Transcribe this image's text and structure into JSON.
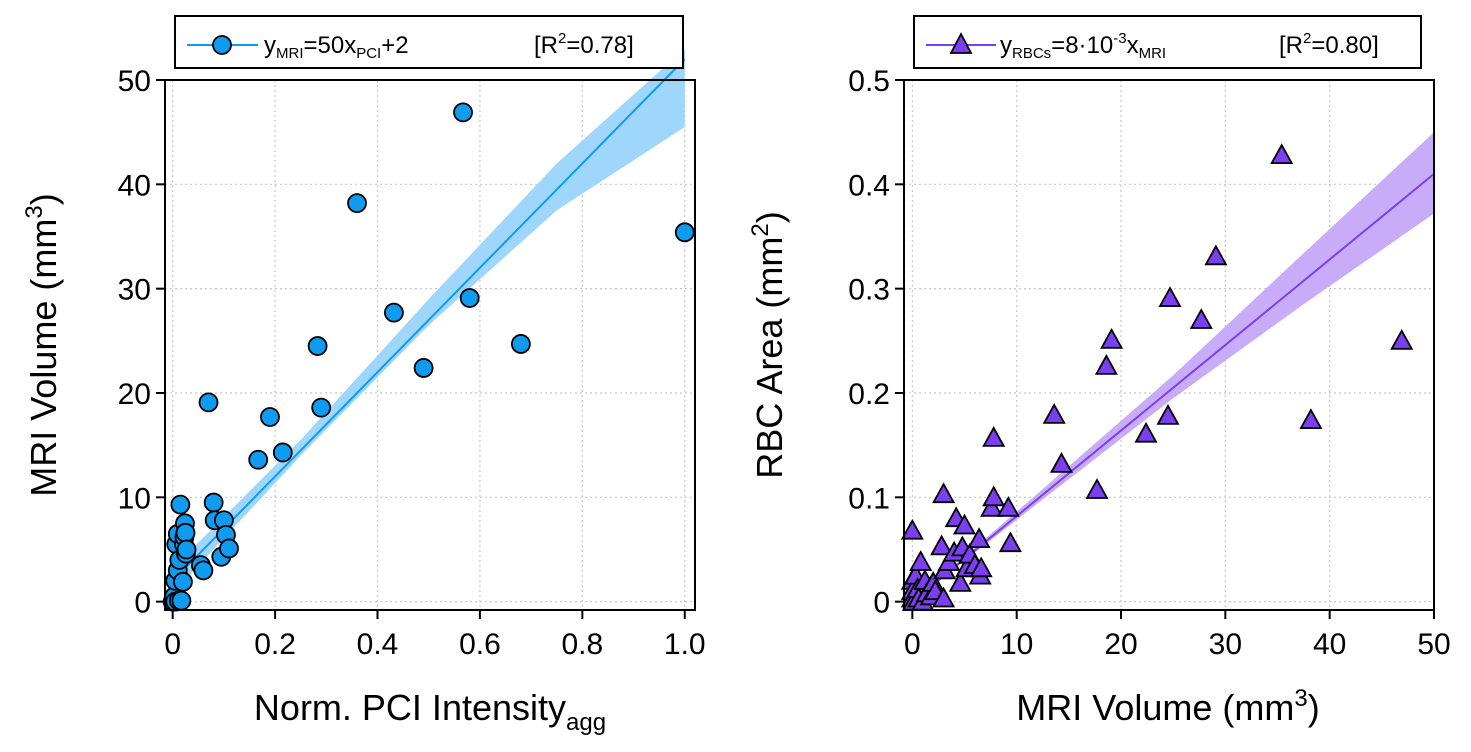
{
  "chart_data": [
    {
      "type": "scatter",
      "x_label_main": "Norm. PCI Intensity",
      "x_label_sub": "agg",
      "y_label_main": "MRI Volume (mm",
      "y_label_sup": "3",
      "y_label_end": ")",
      "xlim": [
        -0.015,
        1.02
      ],
      "ylim": [
        -0.8,
        50
      ],
      "x_ticks": [
        0,
        0.2,
        0.4,
        0.6,
        0.8,
        1.0
      ],
      "x_tick_labels": [
        "0",
        "0.2",
        "0.4",
        "0.6",
        "0.8",
        "1.0"
      ],
      "y_ticks": [
        0,
        10,
        20,
        30,
        40,
        50
      ],
      "y_tick_labels": [
        "0",
        "10",
        "20",
        "30",
        "40",
        "50"
      ],
      "grid": true,
      "legend_position": "top",
      "legend": {
        "y": "y",
        "y_sub": "MRI",
        "eq_mid": "=50x",
        "x_sub": "PCI",
        "eq_end": "+2",
        "r2_start": "[R",
        "r2_sup": "2",
        "r2_end": "=0.78]"
      },
      "fit": {
        "slope": 50,
        "intercept": 2,
        "x_range": [
          0.0,
          1.0
        ]
      },
      "ci_band": {
        "x": [
          0.0,
          0.25,
          0.5,
          0.75,
          1.0
        ],
        "lower": [
          0.8,
          14.0,
          26.5,
          37.5,
          45.5
        ],
        "upper": [
          3.2,
          15.5,
          29.0,
          42.0,
          53.0
        ]
      },
      "color": "#0f9bef",
      "band_color": "#9fd6fb",
      "marker": "circle",
      "points": [
        [
          0.0,
          0.0
        ],
        [
          0.003,
          0.5
        ],
        [
          0.005,
          0.0
        ],
        [
          0.005,
          2.0
        ],
        [
          0.007,
          5.5
        ],
        [
          0.01,
          3.0
        ],
        [
          0.01,
          6.5
        ],
        [
          0.012,
          0.1
        ],
        [
          0.013,
          4.0
        ],
        [
          0.015,
          9.3
        ],
        [
          0.017,
          0.1
        ],
        [
          0.02,
          1.9
        ],
        [
          0.022,
          5.5
        ],
        [
          0.023,
          6.2
        ],
        [
          0.024,
          7.5
        ],
        [
          0.025,
          6.6
        ],
        [
          0.026,
          4.6
        ],
        [
          0.027,
          5.0
        ],
        [
          0.055,
          3.5
        ],
        [
          0.06,
          3.0
        ],
        [
          0.07,
          19.1
        ],
        [
          0.08,
          9.5
        ],
        [
          0.082,
          7.8
        ],
        [
          0.095,
          4.3
        ],
        [
          0.1,
          7.8
        ],
        [
          0.104,
          6.4
        ],
        [
          0.11,
          5.1
        ],
        [
          0.167,
          13.6
        ],
        [
          0.19,
          17.7
        ],
        [
          0.215,
          14.3
        ],
        [
          0.283,
          24.5
        ],
        [
          0.29,
          18.6
        ],
        [
          0.36,
          38.2
        ],
        [
          0.432,
          27.7
        ],
        [
          0.49,
          22.4
        ],
        [
          0.567,
          46.9
        ],
        [
          0.58,
          29.1
        ],
        [
          0.68,
          24.7
        ],
        [
          1.0,
          35.4
        ]
      ]
    },
    {
      "type": "scatter",
      "x_label_main": "MRI Volume (mm",
      "x_label_sup": "3",
      "x_label_end": ")",
      "y_label_main": "RBC Area (mm",
      "y_label_sup": "2",
      "y_label_end": ")",
      "xlim": [
        -0.8,
        50
      ],
      "ylim": [
        -0.008,
        0.5
      ],
      "x_ticks": [
        0,
        10,
        20,
        30,
        40,
        50
      ],
      "x_tick_labels": [
        "0",
        "10",
        "20",
        "30",
        "40",
        "50"
      ],
      "y_ticks": [
        0,
        0.1,
        0.2,
        0.3,
        0.4,
        0.5
      ],
      "y_tick_labels": [
        "0",
        "0.1",
        "0.2",
        "0.3",
        "0.4",
        "0.5"
      ],
      "grid": true,
      "legend_position": "top",
      "legend": {
        "y": "y",
        "y_sub": "RBCs",
        "eq_mid": "=8·10",
        "exp": "-3",
        "eq_x": "x",
        "x_sub": "MRI",
        "r2_start": "[R",
        "r2_sup": "2",
        "r2_end": "=0.80]"
      },
      "fit": {
        "slope": 0.0082,
        "intercept": 0.0,
        "x_range": [
          0.0,
          50.0
        ]
      },
      "ci_band": {
        "x": [
          0,
          12.5,
          25,
          37.5,
          50
        ],
        "lower": [
          0.0,
          0.098,
          0.195,
          0.285,
          0.372
        ],
        "upper": [
          0.0,
          0.108,
          0.217,
          0.334,
          0.45
        ]
      },
      "color": "#7b3ff0",
      "band_color": "#c9acf7",
      "marker": "triangle",
      "points": [
        [
          0.0,
          0.068
        ],
        [
          0.0,
          0.02
        ],
        [
          0.0,
          0.01
        ],
        [
          0.0,
          0.003
        ],
        [
          0.1,
          0.0
        ],
        [
          0.3,
          0.025
        ],
        [
          0.5,
          0.012
        ],
        [
          0.6,
          0.003
        ],
        [
          0.8,
          0.038
        ],
        [
          1.0,
          0.0
        ],
        [
          1.2,
          0.02
        ],
        [
          1.4,
          0.008
        ],
        [
          1.8,
          0.005
        ],
        [
          2.0,
          0.018
        ],
        [
          2.2,
          0.01
        ],
        [
          2.8,
          0.053
        ],
        [
          3.0,
          0.103
        ],
        [
          3.0,
          0.003
        ],
        [
          3.1,
          0.03
        ],
        [
          3.5,
          0.038
        ],
        [
          4.0,
          0.047
        ],
        [
          4.2,
          0.08
        ],
        [
          4.6,
          0.018
        ],
        [
          4.8,
          0.052
        ],
        [
          5.0,
          0.073
        ],
        [
          5.2,
          0.032
        ],
        [
          5.5,
          0.045
        ],
        [
          6.0,
          0.035
        ],
        [
          6.4,
          0.06
        ],
        [
          6.5,
          0.025
        ],
        [
          6.6,
          0.032
        ],
        [
          7.6,
          0.09
        ],
        [
          7.8,
          0.157
        ],
        [
          7.8,
          0.1
        ],
        [
          9.2,
          0.09
        ],
        [
          9.4,
          0.056
        ],
        [
          13.6,
          0.179
        ],
        [
          14.3,
          0.132
        ],
        [
          17.7,
          0.107
        ],
        [
          18.6,
          0.226
        ],
        [
          19.1,
          0.251
        ],
        [
          22.4,
          0.161
        ],
        [
          24.5,
          0.178
        ],
        [
          24.7,
          0.291
        ],
        [
          27.7,
          0.27
        ],
        [
          29.1,
          0.331
        ],
        [
          35.4,
          0.428
        ],
        [
          38.2,
          0.174
        ],
        [
          46.9,
          0.25
        ]
      ]
    }
  ]
}
